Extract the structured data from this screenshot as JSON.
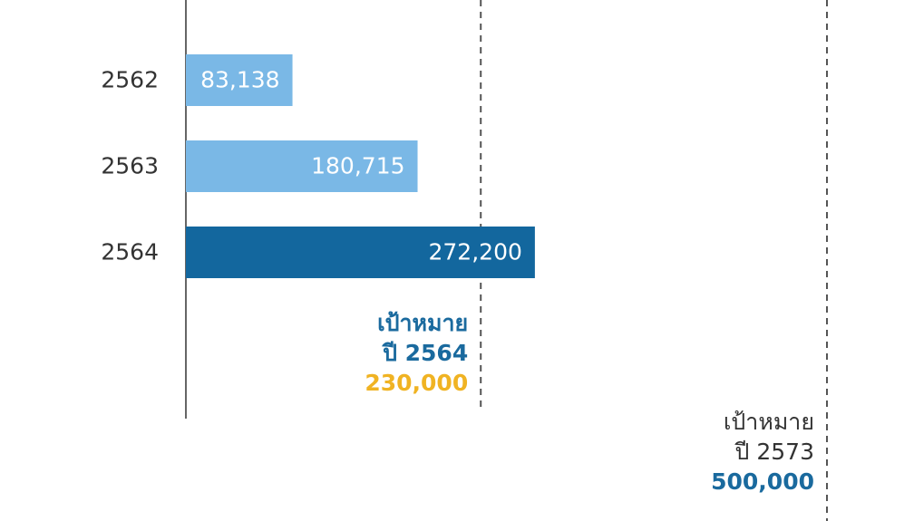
{
  "chart_data": {
    "type": "bar",
    "orientation": "horizontal",
    "categories": [
      "2562",
      "2563",
      "2564"
    ],
    "values": [
      83138,
      180715,
      272200
    ],
    "value_labels": [
      "83,138",
      "180,715",
      "272,200"
    ],
    "colors": [
      "#7ab8e6",
      "#7ab8e6",
      "#13679e"
    ],
    "xlim": [
      0,
      500000
    ],
    "targets": [
      {
        "title": "เป้าหมาย",
        "subtitle": "ปี 2564",
        "value": 230000,
        "value_label": "230,000",
        "color": "#1a6a9e",
        "value_color": "#f0b323",
        "bold": true
      },
      {
        "title": "เป้าหมาย",
        "subtitle": "ปี 2573",
        "value": 500000,
        "value_label": "500,000",
        "color": "#333333",
        "value_color": "#1a6a9e",
        "bold": false
      }
    ]
  }
}
